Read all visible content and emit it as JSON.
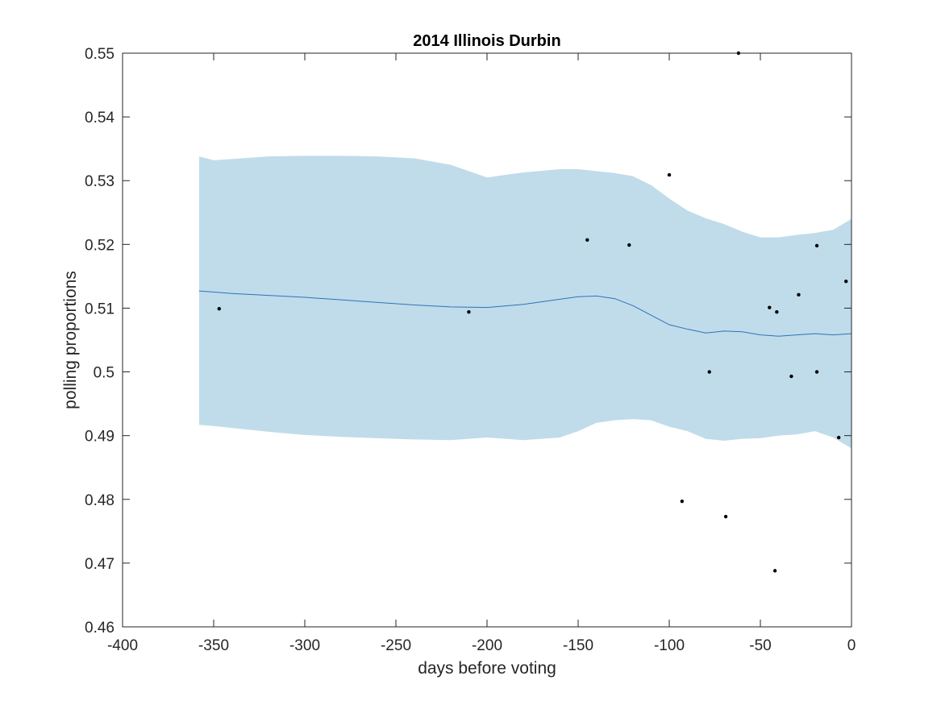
{
  "chart_data": {
    "type": "line",
    "title": "2014 Illinois Durbin",
    "xlabel": "days before voting",
    "ylabel": "polling proportions",
    "xlim": [
      -400,
      0
    ],
    "ylim": [
      0.46,
      0.55
    ],
    "xticks": [
      -400,
      -350,
      -300,
      -250,
      -200,
      -150,
      -100,
      -50,
      0
    ],
    "xtick_labels": [
      "-400",
      "-350",
      "-300",
      "-250",
      "-200",
      "-150",
      "-100",
      "-50",
      "0"
    ],
    "yticks": [
      0.46,
      0.47,
      0.48,
      0.49,
      0.5,
      0.51,
      0.52,
      0.53,
      0.54,
      0.55
    ],
    "ytick_labels": [
      "0.46",
      "0.47",
      "0.48",
      "0.49",
      "0.5",
      "0.51",
      "0.52",
      "0.53",
      "0.54",
      "0.55"
    ],
    "grid": false,
    "band_color": "#c0dcea",
    "line_color": "#2f72b8",
    "point_color": "#000000",
    "trend": {
      "x": [
        -358,
        -340,
        -320,
        -300,
        -280,
        -260,
        -240,
        -220,
        -200,
        -180,
        -160,
        -150,
        -140,
        -130,
        -120,
        -110,
        -100,
        -90,
        -80,
        -70,
        -60,
        -50,
        -40,
        -30,
        -20,
        -10,
        0
      ],
      "y": [
        0.5127,
        0.5123,
        0.512,
        0.5117,
        0.5113,
        0.5109,
        0.5105,
        0.5102,
        0.5101,
        0.5106,
        0.5114,
        0.5118,
        0.5119,
        0.5115,
        0.5104,
        0.5089,
        0.5074,
        0.5067,
        0.5061,
        0.5064,
        0.5063,
        0.5058,
        0.5056,
        0.5058,
        0.506,
        0.5058,
        0.506
      ]
    },
    "band": {
      "x": [
        -358,
        -350,
        -340,
        -320,
        -300,
        -280,
        -260,
        -240,
        -220,
        -200,
        -180,
        -160,
        -150,
        -140,
        -130,
        -120,
        -110,
        -100,
        -90,
        -80,
        -70,
        -60,
        -50,
        -40,
        -30,
        -20,
        -10,
        0
      ],
      "upper": [
        0.5338,
        0.5332,
        0.5334,
        0.5338,
        0.5339,
        0.5339,
        0.5338,
        0.5335,
        0.5325,
        0.5305,
        0.5313,
        0.5318,
        0.5318,
        0.5315,
        0.5312,
        0.5307,
        0.5293,
        0.5272,
        0.5253,
        0.5241,
        0.5232,
        0.522,
        0.5211,
        0.5211,
        0.5215,
        0.5218,
        0.5223,
        0.524
      ],
      "lower": [
        0.4917,
        0.4915,
        0.4912,
        0.4906,
        0.4901,
        0.4898,
        0.4896,
        0.4894,
        0.4893,
        0.4897,
        0.4893,
        0.4897,
        0.4907,
        0.492,
        0.4924,
        0.4926,
        0.4924,
        0.4914,
        0.4907,
        0.4895,
        0.4892,
        0.4895,
        0.4896,
        0.49,
        0.4902,
        0.4907,
        0.4897,
        0.488
      ]
    },
    "points": {
      "x": [
        -347,
        -210,
        -145,
        -122,
        -100,
        -93,
        -78,
        -69,
        -62,
        -45,
        -42,
        -41,
        -33,
        -29,
        -19,
        -19,
        -7,
        -3
      ],
      "y": [
        0.5099,
        0.5094,
        0.5207,
        0.5199,
        0.5309,
        0.4797,
        0.5,
        0.4773,
        0.55,
        0.5101,
        0.4688,
        0.5094,
        0.4993,
        0.5121,
        0.5198,
        0.5,
        0.4897,
        0.5142
      ]
    }
  }
}
